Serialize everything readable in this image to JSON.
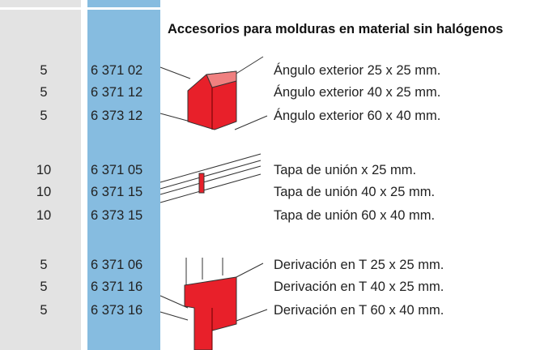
{
  "header": {
    "title": "Accesorios para molduras en material sin halógenos"
  },
  "groups": [
    {
      "rows": [
        {
          "qty": 5,
          "code": "6 371 02",
          "description": "Ángulo exterior 25 x 25 mm."
        },
        {
          "qty": 5,
          "code": "6 371 12",
          "description": "Ángulo exterior 40 x 25 mm."
        },
        {
          "qty": 5,
          "code": "6 373 12",
          "description": "Ángulo exterior 60 x 40 mm."
        }
      ]
    },
    {
      "rows": [
        {
          "qty": 10,
          "code": "6 371 05",
          "description": "Tapa de unión x 25 mm."
        },
        {
          "qty": 10,
          "code": "6 371 15",
          "description": "Tapa de unión 40 x 25 mm."
        },
        {
          "qty": 10,
          "code": "6 373 15",
          "description": "Tapa de unión 60 x 40 mm."
        }
      ]
    },
    {
      "rows": [
        {
          "qty": 5,
          "code": "6 371 06",
          "description": "Derivación en T 25 x 25 mm."
        },
        {
          "qty": 5,
          "code": "6 371 16",
          "description": "Derivación en T 40 x 25 mm."
        },
        {
          "qty": 5,
          "code": "6 373 16",
          "description": "Derivación en T 60 x 40 mm."
        }
      ]
    }
  ]
}
